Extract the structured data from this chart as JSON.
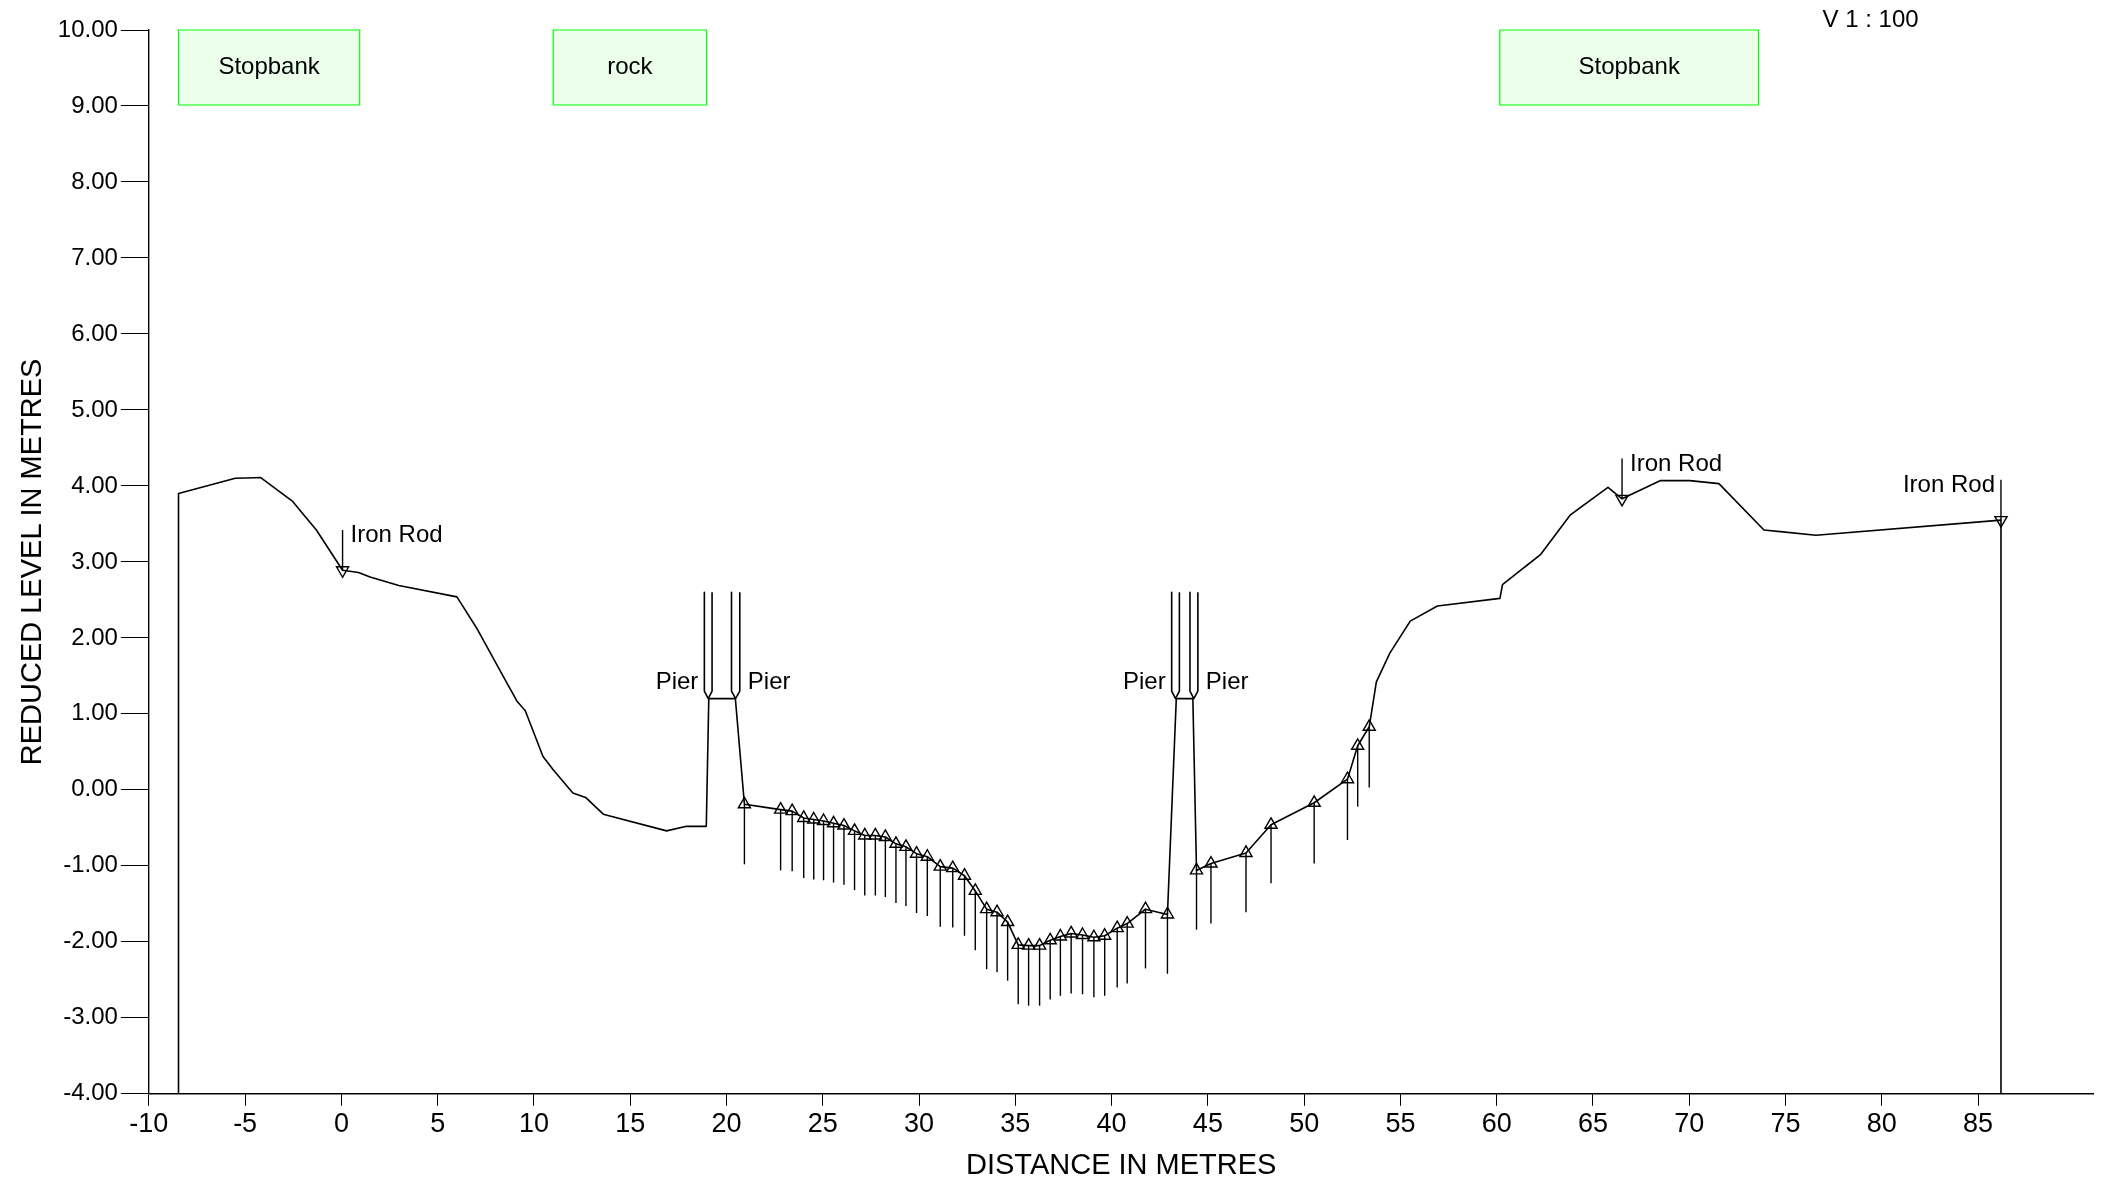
{
  "chart_data": {
    "type": "line",
    "xlabel": "DISTANCE IN METRES",
    "ylabel": "REDUCED LEVEL IN METRES",
    "xlim": [
      -10,
      91
    ],
    "xticks": [
      -10,
      -5,
      0,
      5,
      10,
      15,
      20,
      25,
      30,
      35,
      40,
      45,
      50,
      55,
      60,
      65,
      70,
      75,
      80,
      85
    ],
    "ylim": [
      -4,
      10
    ],
    "yticks": [
      {
        "value": -4,
        "label": "-4.00"
      },
      {
        "value": -3,
        "label": "-3.00"
      },
      {
        "value": -2,
        "label": "-2.00"
      },
      {
        "value": -1,
        "label": "-1.00"
      },
      {
        "value": 0,
        "label": "0.00"
      },
      {
        "value": 1,
        "label": "1.00"
      },
      {
        "value": 2,
        "label": "2.00"
      },
      {
        "value": 3,
        "label": "3.00"
      },
      {
        "value": 4,
        "label": "4.00"
      },
      {
        "value": 5,
        "label": "5.00"
      },
      {
        "value": 6,
        "label": "6.00"
      },
      {
        "value": 7,
        "label": "7.00"
      },
      {
        "value": 8,
        "label": "8.00"
      },
      {
        "value": 9,
        "label": "9.00"
      },
      {
        "value": 10,
        "label": "10.00"
      }
    ],
    "series": [
      {
        "color": "#000000",
        "x": [
          -8.46,
          -8.46,
          -5.51,
          -4.19,
          -2.55,
          -1.3,
          0.06,
          0.89,
          1.49,
          2.98,
          6.0,
          7.07,
          9.11,
          9.55,
          10.47,
          11.01,
          12.02,
          12.68,
          13.6,
          16.89,
          17.92,
          18.95,
          19.08,
          20.46,
          20.93,
          22.81,
          23.41,
          24.01,
          24.53,
          25.04,
          25.56,
          26.1,
          26.65,
          27.18,
          27.73,
          28.25,
          28.8,
          29.32,
          29.87,
          30.43,
          31.1,
          31.75,
          32.36,
          32.92,
          33.51,
          34.05,
          34.6,
          35.15,
          35.69,
          36.26,
          36.81,
          37.34,
          37.9,
          38.49,
          39.08,
          39.64,
          40.29,
          40.81,
          41.76,
          42.9,
          43.36,
          44.22,
          44.41,
          45.16,
          46.98,
          48.28,
          50.52,
          52.25,
          52.78,
          53.38,
          53.75,
          54.45,
          55.51,
          56.92,
          60.17,
          60.3,
          62.29,
          63.83,
          65.78,
          66.51,
          68.51,
          70.03,
          71.54,
          73.88,
          76.58,
          86.19,
          86.19
        ],
        "values": [
          -4.0,
          3.9,
          4.1,
          4.11,
          3.8,
          3.42,
          2.89,
          2.86,
          2.8,
          2.69,
          2.54,
          2.11,
          1.17,
          1.04,
          0.44,
          0.26,
          -0.04,
          -0.1,
          -0.32,
          -0.54,
          -0.48,
          -0.48,
          1.2,
          1.2,
          -0.19,
          -0.26,
          -0.28,
          -0.37,
          -0.39,
          -0.41,
          -0.44,
          -0.47,
          -0.54,
          -0.6,
          -0.6,
          -0.62,
          -0.71,
          -0.75,
          -0.84,
          -0.88,
          -1.01,
          -1.03,
          -1.13,
          -1.33,
          -1.57,
          -1.61,
          -1.74,
          -2.04,
          -2.05,
          -2.05,
          -1.98,
          -1.93,
          -1.89,
          -1.91,
          -1.94,
          -1.92,
          -1.82,
          -1.76,
          -1.57,
          -1.64,
          1.2,
          1.2,
          -1.06,
          -0.97,
          -0.83,
          -0.46,
          -0.17,
          0.14,
          0.58,
          0.83,
          1.42,
          1.8,
          2.22,
          2.42,
          2.52,
          2.7,
          3.1,
          3.62,
          3.98,
          3.83,
          4.07,
          4.07,
          4.03,
          3.42,
          3.35,
          3.55,
          -4.0
        ]
      },
      {
        "color": "#000000",
        "x": [
          18.85,
          18.85,
          19.05,
          19.25,
          19.25
        ],
        "values": [
          2.6,
          1.3,
          1.2,
          1.3,
          2.6
        ]
      },
      {
        "color": "#000000",
        "x": [
          20.26,
          20.26,
          20.47,
          20.69,
          20.69
        ],
        "values": [
          2.6,
          1.3,
          1.2,
          1.3,
          2.6
        ]
      },
      {
        "color": "#000000",
        "x": [
          43.12,
          43.12,
          43.32,
          43.52,
          43.52
        ],
        "values": [
          2.6,
          1.3,
          1.2,
          1.3,
          2.6
        ]
      },
      {
        "color": "#000000",
        "x": [
          44.07,
          44.07,
          44.27,
          44.48,
          44.48
        ],
        "values": [
          2.6,
          1.3,
          1.2,
          1.3,
          2.6
        ]
      },
      {
        "type": "scatter",
        "marker": "triangle",
        "color": "#000000",
        "x": [
          20.93,
          22.81,
          23.41,
          24.01,
          24.53,
          25.04,
          25.56,
          26.1,
          26.65,
          27.18,
          27.73,
          28.25,
          28.8,
          29.32,
          29.87,
          30.43,
          31.1,
          31.75,
          32.36,
          32.92,
          33.51,
          34.05,
          34.6,
          35.15,
          35.69,
          36.26,
          36.81,
          37.34,
          37.9,
          38.49,
          39.08,
          39.64,
          40.29,
          40.81,
          41.76,
          42.9,
          44.41,
          45.16,
          46.98,
          48.28,
          50.52,
          52.25,
          52.78,
          53.38
        ],
        "values": [
          -0.19,
          -0.26,
          -0.28,
          -0.37,
          -0.39,
          -0.41,
          -0.44,
          -0.47,
          -0.54,
          -0.6,
          -0.6,
          -0.62,
          -0.71,
          -0.75,
          -0.84,
          -0.88,
          -1.01,
          -1.03,
          -1.13,
          -1.33,
          -1.57,
          -1.61,
          -1.74,
          -2.04,
          -2.05,
          -2.05,
          -1.98,
          -1.93,
          -1.89,
          -1.91,
          -1.94,
          -1.92,
          -1.82,
          -1.76,
          -1.57,
          -1.64,
          -1.06,
          -0.97,
          -0.83,
          -0.46,
          -0.17,
          0.14,
          0.58,
          0.83
        ],
        "errors": [
          [
            -0.98,
            -0.19
          ],
          [
            -1.06,
            -0.26
          ],
          [
            -1.07,
            -0.28
          ],
          [
            -1.16,
            -0.37
          ],
          [
            -1.18,
            -0.39
          ],
          [
            -1.19,
            -0.41
          ],
          [
            -1.22,
            -0.44
          ],
          [
            -1.25,
            -0.47
          ],
          [
            -1.32,
            -0.54
          ],
          [
            -1.39,
            -0.6
          ],
          [
            -1.39,
            -0.6
          ],
          [
            -1.41,
            -0.62
          ],
          [
            -1.49,
            -0.71
          ],
          [
            -1.53,
            -0.75
          ],
          [
            -1.62,
            -0.84
          ],
          [
            -1.66,
            -0.88
          ],
          [
            -1.8,
            -1.01
          ],
          [
            -1.81,
            -1.03
          ],
          [
            -1.92,
            -1.13
          ],
          [
            -2.11,
            -1.33
          ],
          [
            -2.36,
            -1.57
          ],
          [
            -2.4,
            -1.61
          ],
          [
            -2.51,
            -1.74
          ],
          [
            -2.82,
            -2.04
          ],
          [
            -2.84,
            -2.05
          ],
          [
            -2.84,
            -2.05
          ],
          [
            -2.76,
            -1.98
          ],
          [
            -2.71,
            -1.93
          ],
          [
            -2.68,
            -1.89
          ],
          [
            -2.69,
            -1.91
          ],
          [
            -2.73,
            -1.94
          ],
          [
            -2.71,
            -1.92
          ],
          [
            -2.6,
            -1.82
          ],
          [
            -2.55,
            -1.76
          ],
          [
            -2.35,
            -1.57
          ],
          [
            -2.42,
            -1.64
          ],
          [
            -1.84,
            -1.06
          ],
          [
            -1.76,
            -0.97
          ],
          [
            -1.61,
            -0.83
          ],
          [
            -1.23,
            -0.46
          ],
          [
            -0.97,
            -0.17
          ],
          [
            -0.66,
            0.14
          ],
          [
            -0.22,
            0.58
          ],
          [
            0.03,
            0.83
          ]
        ]
      },
      {
        "type": "scatter",
        "marker": "triangle",
        "color": "#000000",
        "x": [
          0.06,
          66.51,
          86.19
        ],
        "values": [
          2.89,
          3.83,
          3.55
        ],
        "errors": [
          [
            2.89,
            3.42
          ],
          [
            3.83,
            4.36
          ],
          [
            3.55,
            4.08
          ]
        ]
      }
    ],
    "bands": [
      {
        "axis": "x",
        "from": -8.46,
        "to": 0.95,
        "label": "Stopbank",
        "color": "#00ff00"
      },
      {
        "axis": "x",
        "from": 11.0,
        "to": 18.97,
        "label": "rock",
        "color": "#00ff00"
      },
      {
        "axis": "x",
        "from": 60.16,
        "to": 73.6,
        "label": "Stopbank",
        "color": "#00ff00"
      }
    ],
    "annotations": [
      "V 1 : 100",
      {
        "text": "Iron Rod",
        "x": 0.06,
        "y": 2.89
      },
      {
        "text": "Iron Rod",
        "x": 66.51,
        "y": 3.83
      },
      {
        "text": "Iron Rod",
        "x": 86.19,
        "y": 3.55
      },
      {
        "text": "Pier",
        "x": 18.85,
        "y": 1.2
      },
      {
        "text": "Pier",
        "x": 20.69,
        "y": 1.2
      },
      {
        "text": "Pier",
        "x": 43.12,
        "y": 1.2
      },
      {
        "text": "Pier",
        "x": 44.48,
        "y": 1.2
      }
    ]
  }
}
